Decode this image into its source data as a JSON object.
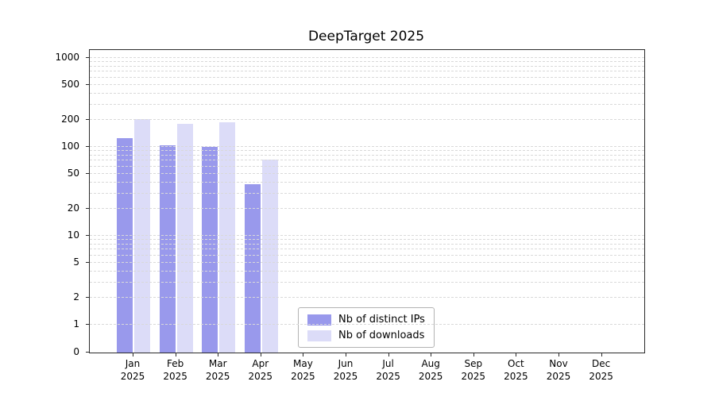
{
  "chart_data": {
    "type": "bar",
    "title": "DeepTarget 2025",
    "yscale": "symlog",
    "ylim": [
      0,
      1228
    ],
    "yticks": [
      0,
      1,
      2,
      5,
      10,
      20,
      50,
      100,
      200,
      500,
      1000
    ],
    "grid": "horizontal-dashed",
    "legend_position": "lower center",
    "xtick_labels": [
      [
        "Jan",
        "2025"
      ],
      [
        "Feb",
        "2025"
      ],
      [
        "Mar",
        "2025"
      ],
      [
        "Apr",
        "2025"
      ],
      [
        "May",
        "2025"
      ],
      [
        "Jun",
        "2025"
      ],
      [
        "Jul",
        "2025"
      ],
      [
        "Aug",
        "2025"
      ],
      [
        "Sep",
        "2025"
      ],
      [
        "Oct",
        "2025"
      ],
      [
        "Nov",
        "2025"
      ],
      [
        "Dec",
        "2025"
      ]
    ],
    "categories": [
      "Jan 2025",
      "Feb 2025",
      "Mar 2025",
      "Apr 2025",
      "May 2025",
      "Jun 2025",
      "Jul 2025",
      "Aug 2025",
      "Sep 2025",
      "Oct 2025",
      "Nov 2025",
      "Dec 2025"
    ],
    "series": [
      {
        "name": "Nb of distinct IPs",
        "color": "#9999ec",
        "values": [
          125,
          105,
          100,
          38,
          0,
          0,
          0,
          0,
          0,
          0,
          0,
          0
        ]
      },
      {
        "name": "Nb of downloads",
        "color": "#dcdcf8",
        "values": [
          205,
          180,
          190,
          72,
          0,
          0,
          0,
          0,
          0,
          0,
          0,
          0
        ]
      }
    ]
  }
}
